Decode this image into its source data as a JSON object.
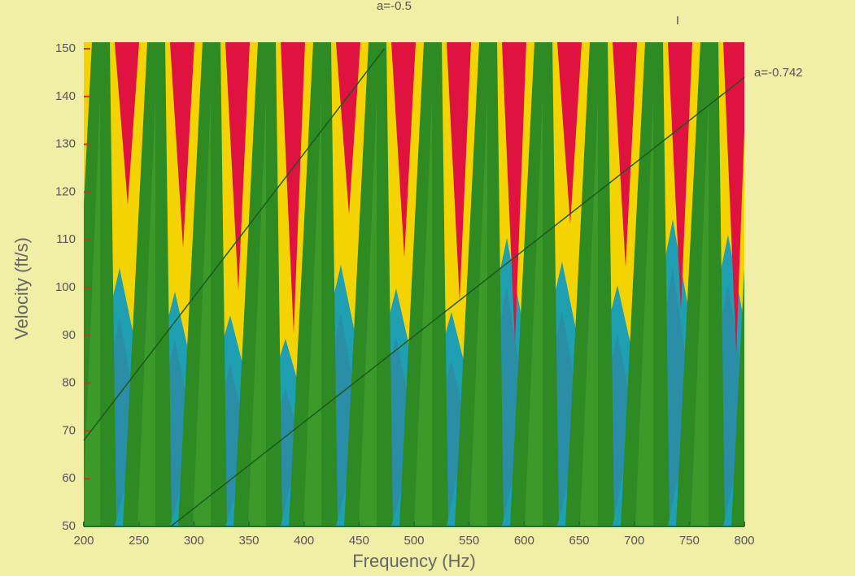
{
  "chart_data": {
    "type": "line",
    "xlabel": "Frequency (Hz)",
    "ylabel": "Velocity (ft/s)",
    "annotations": [
      "I"
    ],
    "xlim": [
      200,
      800
    ],
    "xticks": [
      200,
      250,
      300,
      350,
      400,
      450,
      500,
      550,
      600,
      650,
      700,
      750,
      800
    ],
    "ylim": [
      50,
      150
    ],
    "yticks": [
      50,
      60,
      70,
      80,
      90,
      100,
      110,
      120,
      130,
      140,
      150
    ],
    "series": [
      {
        "name": "a=-0.5",
        "color": "#1d5a1d",
        "x": [
          200,
          473
        ],
        "values": [
          68,
          150
        ]
      },
      {
        "name": "a=-0.742",
        "color": "#1d5a1d",
        "x": [
          279,
          800
        ],
        "values": [
          50,
          144
        ]
      }
    ]
  }
}
